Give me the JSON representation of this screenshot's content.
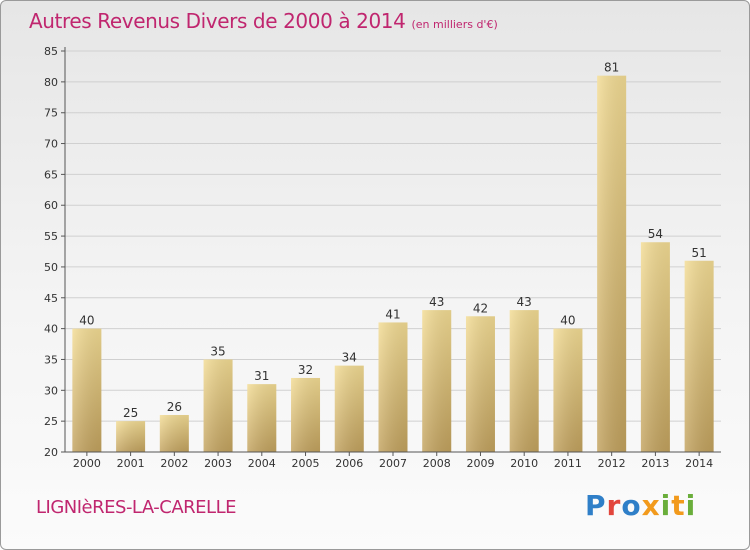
{
  "header": {
    "title": "Autres Revenus Divers de 2000 à 2014",
    "unit": "(en milliers d'€)"
  },
  "footer": {
    "town": "LIGNIèRES-LA-CARELLE",
    "brand": "Proxiti"
  },
  "colors": {
    "title": "#c0266f",
    "bar_light": "#f3dc94",
    "bar_dark": "#c2a25e",
    "grid": "#d0d0d0"
  },
  "chart_data": {
    "type": "bar",
    "title": "Autres Revenus Divers de 2000 à 2014",
    "subtitle": "(en milliers d'€)",
    "xlabel": "",
    "ylabel": "",
    "categories": [
      "2000",
      "2001",
      "2002",
      "2003",
      "2004",
      "2005",
      "2006",
      "2007",
      "2008",
      "2009",
      "2010",
      "2011",
      "2012",
      "2013",
      "2014"
    ],
    "values": [
      40,
      25,
      26,
      35,
      31,
      32,
      34,
      41,
      43,
      42,
      43,
      40,
      81,
      54,
      51
    ],
    "ylim": [
      20,
      85
    ],
    "yticks": [
      20,
      25,
      30,
      35,
      40,
      45,
      50,
      55,
      60,
      65,
      70,
      75,
      80,
      85
    ],
    "grid": true,
    "legend": "none"
  }
}
